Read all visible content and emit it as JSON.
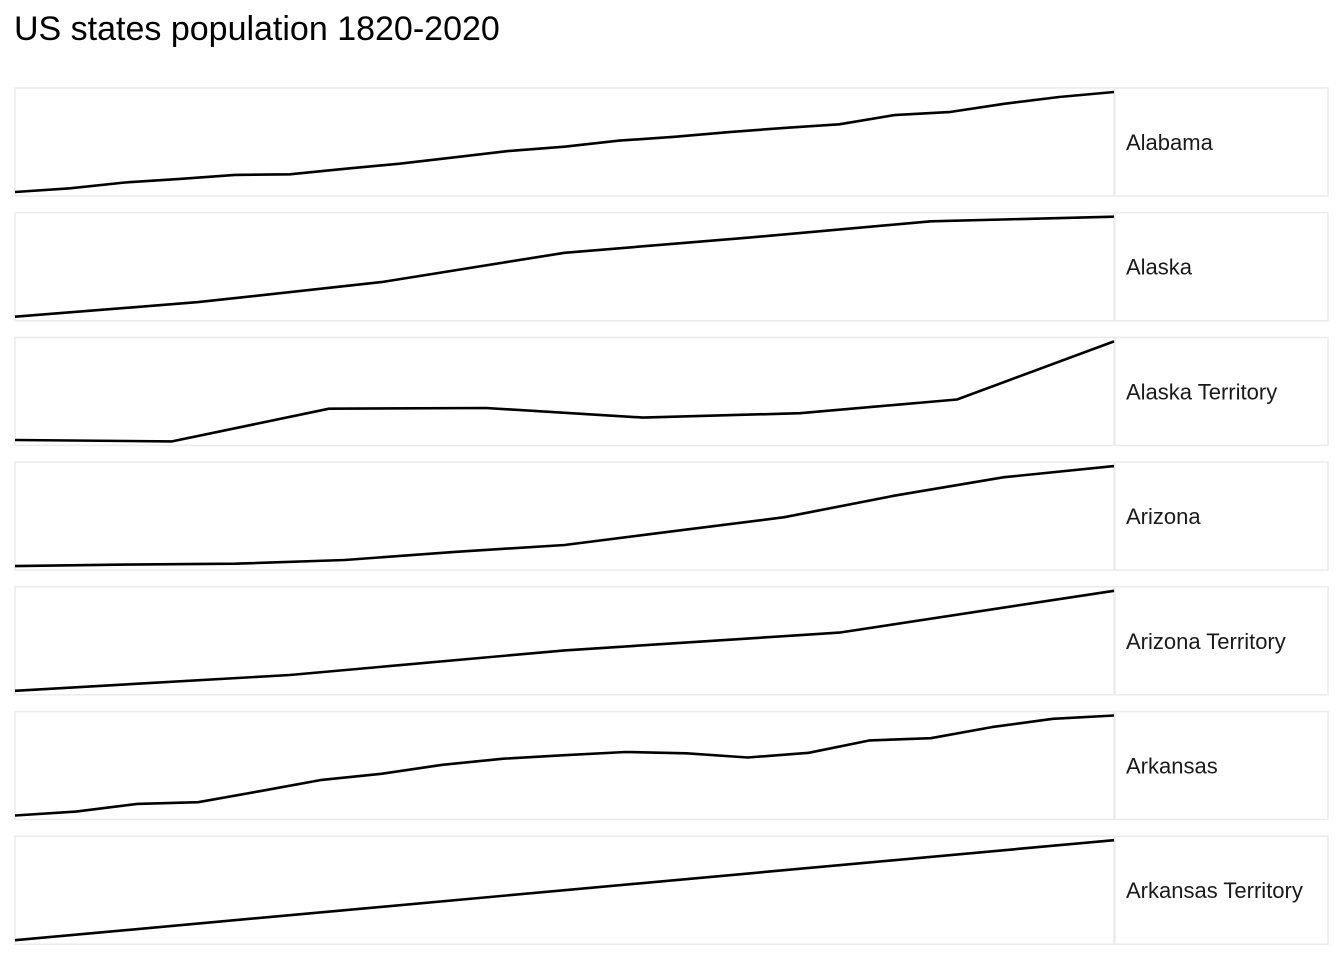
{
  "chart_data": {
    "type": "line",
    "title": "US states population 1820-2020",
    "xlabel": "",
    "ylabel": "",
    "facet_scales": "free",
    "grid": false,
    "legend": "none",
    "line_color": "#000000",
    "panel_border_color": "#ebebeb",
    "series": [
      {
        "name": "Alabama",
        "x": [
          1820,
          1830,
          1840,
          1850,
          1860,
          1870,
          1880,
          1890,
          1900,
          1910,
          1920,
          1930,
          1940,
          1950,
          1960,
          1970,
          1980,
          1990,
          2000,
          2010,
          2020
        ],
        "values": [
          127901,
          309527,
          590756,
          771623,
          964201,
          996992,
          1262505,
          1513401,
          1828697,
          2138093,
          2348174,
          2646248,
          2832961,
          3061743,
          3266740,
          3444165,
          3893888,
          4040587,
          4447100,
          4779736,
          5024279
        ]
      },
      {
        "name": "Alaska",
        "x": [
          1960,
          1970,
          1980,
          1990,
          2000,
          2010,
          2020
        ],
        "values": [
          226167,
          300382,
          401851,
          550043,
          626932,
          710231,
          733391
        ]
      },
      {
        "name": "Alaska Territory",
        "x": [
          1880,
          1890,
          1900,
          1910,
          1920,
          1930,
          1940,
          1950
        ],
        "values": [
          33426,
          32052,
          63592,
          64356,
          55036,
          59278,
          72524,
          128643
        ]
      },
      {
        "name": "Arizona",
        "x": [
          1920,
          1930,
          1940,
          1950,
          1960,
          1970,
          1980,
          1990,
          2000,
          2010,
          2020
        ],
        "values": [
          334162,
          435573,
          499261,
          749587,
          1302161,
          1770900,
          2718215,
          3665228,
          5130632,
          6392017,
          7151502
        ]
      },
      {
        "name": "Arizona Territory",
        "x": [
          1870,
          1880,
          1890,
          1900,
          1910
        ],
        "values": [
          9658,
          40440,
          88243,
          122931,
          204354
        ]
      },
      {
        "name": "Arkansas",
        "x": [
          1840,
          1850,
          1860,
          1870,
          1880,
          1890,
          1900,
          1910,
          1920,
          1930,
          1940,
          1950,
          1960,
          1970,
          1980,
          1990,
          2000,
          2010,
          2020
        ],
        "values": [
          97574,
          209897,
          435450,
          484471,
          802525,
          1128211,
          1311564,
          1574449,
          1752204,
          1854482,
          1949387,
          1909511,
          1786272,
          1923295,
          2286435,
          2350725,
          2673400,
          2915918,
          3011524
        ]
      },
      {
        "name": "Arkansas Territory",
        "x": [
          1820,
          1830
        ],
        "values": [
          14273,
          30388
        ]
      }
    ]
  }
}
